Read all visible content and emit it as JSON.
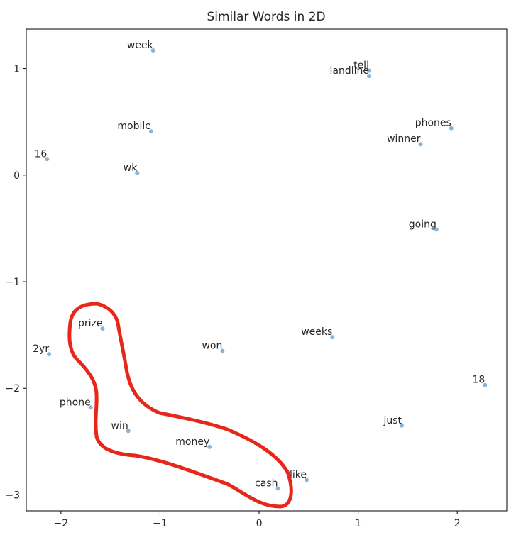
{
  "chart_data": {
    "type": "scatter",
    "title": "Similar Words in 2D",
    "xlabel": "",
    "ylabel": "",
    "xlim": [
      -2.35,
      2.5
    ],
    "ylim": [
      -3.15,
      1.37
    ],
    "xticks": [
      -2,
      -1,
      0,
      1,
      2
    ],
    "xtick_labels": [
      "−2",
      "−1",
      "0",
      "1",
      "2"
    ],
    "yticks": [
      1,
      0,
      -1,
      -2,
      -3
    ],
    "ytick_labels": [
      "1",
      "0",
      "−1",
      "−2",
      "−3"
    ],
    "grid": false,
    "point_color": "#7aaed6",
    "points": [
      {
        "label": "week",
        "x": -1.07,
        "y": 1.17
      },
      {
        "label": "tell",
        "x": 1.11,
        "y": 0.98
      },
      {
        "label": "landline",
        "x": 1.11,
        "y": 0.93
      },
      {
        "label": "phones",
        "x": 1.94,
        "y": 0.44
      },
      {
        "label": "mobile",
        "x": -1.09,
        "y": 0.41
      },
      {
        "label": "winner",
        "x": 1.63,
        "y": 0.29
      },
      {
        "label": "16",
        "x": -2.14,
        "y": 0.15
      },
      {
        "label": "wk",
        "x": -1.23,
        "y": 0.02
      },
      {
        "label": "going",
        "x": 1.79,
        "y": -0.51
      },
      {
        "label": "prize",
        "x": -1.58,
        "y": -1.44
      },
      {
        "label": "weeks",
        "x": 0.74,
        "y": -1.52
      },
      {
        "label": "won",
        "x": -0.37,
        "y": -1.65
      },
      {
        "label": "2yr",
        "x": -2.12,
        "y": -1.68
      },
      {
        "label": "18",
        "x": 2.28,
        "y": -1.97
      },
      {
        "label": "phone",
        "x": -1.7,
        "y": -2.18
      },
      {
        "label": "just",
        "x": 1.44,
        "y": -2.35
      },
      {
        "label": "win",
        "x": -1.32,
        "y": -2.4
      },
      {
        "label": "money",
        "x": -0.5,
        "y": -2.55
      },
      {
        "label": "like",
        "x": 0.48,
        "y": -2.86
      },
      {
        "label": "cash",
        "x": 0.19,
        "y": -2.94
      }
    ],
    "annotation": {
      "type": "freehand-outline",
      "color": "#e8271b",
      "encloses": [
        "prize",
        "phone",
        "win",
        "money",
        "cash"
      ]
    }
  }
}
